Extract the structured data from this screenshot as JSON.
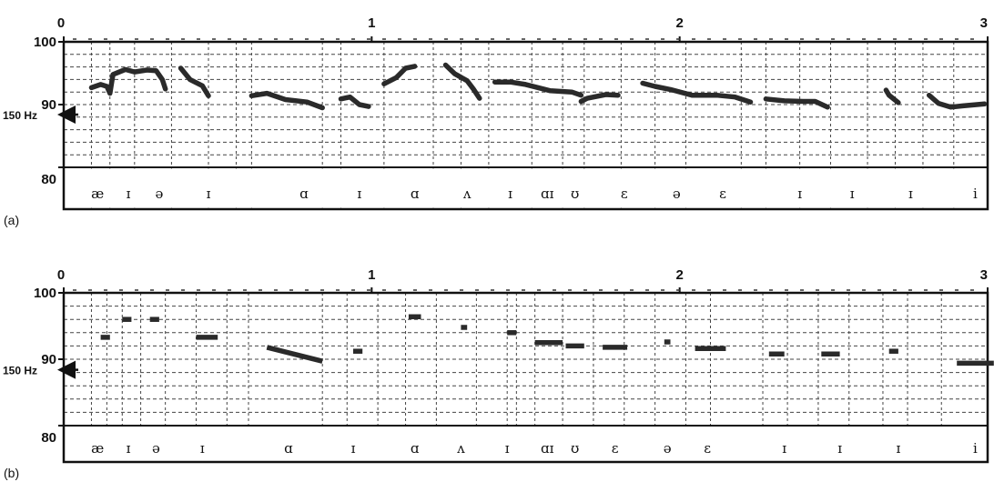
{
  "chart_data": [
    {
      "type": "line",
      "panel_label": "(a)",
      "xlim": [
        0,
        3
      ],
      "x_ticks": [
        "0",
        "1",
        "2",
        "3"
      ],
      "ylim": [
        80,
        100
      ],
      "y_ticks": [
        "100",
        "90",
        "80"
      ],
      "reference_label": "150 Hz",
      "reference_value": 88.4,
      "segment_labels": [
        {
          "x": 0.11,
          "label": "æ"
        },
        {
          "x": 0.21,
          "label": "ɪ"
        },
        {
          "x": 0.31,
          "label": "ə"
        },
        {
          "x": 0.47,
          "label": "ɪ"
        },
        {
          "x": 0.78,
          "label": "ɑ"
        },
        {
          "x": 0.96,
          "label": "ɪ"
        },
        {
          "x": 1.14,
          "label": "ɑ"
        },
        {
          "x": 1.31,
          "label": "ʌ"
        },
        {
          "x": 1.45,
          "label": "ɪ"
        },
        {
          "x": 1.57,
          "label": "ɑɪ"
        },
        {
          "x": 1.66,
          "label": "ʊ"
        },
        {
          "x": 1.82,
          "label": "ɛ"
        },
        {
          "x": 1.99,
          "label": "ə"
        },
        {
          "x": 2.14,
          "label": "ɛ"
        },
        {
          "x": 2.39,
          "label": "ɪ"
        },
        {
          "x": 2.56,
          "label": "ɪ"
        },
        {
          "x": 2.75,
          "label": "ɪ"
        },
        {
          "x": 2.96,
          "label": "i"
        }
      ],
      "series": [
        {
          "segments": [
            [
              [
                0.09,
                92.7
              ],
              [
                0.12,
                93.2
              ],
              [
                0.14,
                92.9
              ],
              [
                0.15,
                91.8
              ],
              [
                0.16,
                94.8
              ],
              [
                0.2,
                95.6
              ],
              [
                0.23,
                95.2
              ],
              [
                0.27,
                95.5
              ],
              [
                0.3,
                95.4
              ],
              [
                0.32,
                94.0
              ],
              [
                0.33,
                92.5
              ]
            ],
            [
              [
                0.38,
                95.8
              ],
              [
                0.41,
                94.0
              ],
              [
                0.45,
                93.0
              ],
              [
                0.47,
                91.4
              ]
            ],
            [
              [
                0.61,
                91.4
              ],
              [
                0.66,
                91.8
              ],
              [
                0.72,
                90.8
              ],
              [
                0.79,
                90.4
              ],
              [
                0.84,
                89.5
              ]
            ],
            [
              [
                0.9,
                90.9
              ],
              [
                0.93,
                91.2
              ],
              [
                0.96,
                90.0
              ],
              [
                0.99,
                89.7
              ]
            ],
            [
              [
                1.04,
                93.3
              ],
              [
                1.08,
                94.3
              ],
              [
                1.11,
                95.8
              ],
              [
                1.14,
                96.1
              ]
            ],
            [
              [
                1.24,
                96.3
              ],
              [
                1.27,
                94.9
              ],
              [
                1.31,
                93.8
              ],
              [
                1.33,
                92.5
              ],
              [
                1.35,
                91.0
              ]
            ],
            [
              [
                1.4,
                93.6
              ],
              [
                1.45,
                93.6
              ],
              [
                1.5,
                93.2
              ],
              [
                1.58,
                92.2
              ],
              [
                1.65,
                92.0
              ],
              [
                1.68,
                91.5
              ]
            ],
            [
              [
                1.68,
                90.5
              ],
              [
                1.7,
                91.0
              ],
              [
                1.76,
                91.6
              ],
              [
                1.8,
                91.5
              ]
            ],
            [
              [
                1.88,
                93.4
              ],
              [
                1.92,
                92.9
              ],
              [
                1.97,
                92.4
              ],
              [
                2.04,
                91.5
              ],
              [
                2.12,
                91.5
              ],
              [
                2.18,
                91.2
              ],
              [
                2.23,
                90.4
              ]
            ],
            [
              [
                2.28,
                90.9
              ],
              [
                2.34,
                90.6
              ],
              [
                2.4,
                90.5
              ],
              [
                2.44,
                90.5
              ],
              [
                2.48,
                89.6
              ]
            ],
            [
              [
                2.67,
                92.3
              ],
              [
                2.68,
                91.5
              ],
              [
                2.71,
                90.3
              ]
            ],
            [
              [
                2.81,
                91.5
              ],
              [
                2.84,
                90.2
              ],
              [
                2.88,
                89.6
              ],
              [
                2.92,
                89.8
              ],
              [
                2.99,
                90.1
              ]
            ]
          ]
        }
      ]
    },
    {
      "type": "line",
      "panel_label": "(b)",
      "xlim": [
        0,
        3
      ],
      "x_ticks": [
        "0",
        "1",
        "2",
        "3"
      ],
      "ylim": [
        80,
        100
      ],
      "y_ticks": [
        "100",
        "90",
        "80"
      ],
      "reference_label": "150 Hz",
      "reference_value": 88.4,
      "segment_labels": [
        {
          "x": 0.11,
          "label": "æ"
        },
        {
          "x": 0.21,
          "label": "ɪ"
        },
        {
          "x": 0.3,
          "label": "ə"
        },
        {
          "x": 0.45,
          "label": "ɪ"
        },
        {
          "x": 0.73,
          "label": "ɑ"
        },
        {
          "x": 0.94,
          "label": "ɪ"
        },
        {
          "x": 1.14,
          "label": "ɑ"
        },
        {
          "x": 1.29,
          "label": "ʌ"
        },
        {
          "x": 1.44,
          "label": "ɪ"
        },
        {
          "x": 1.57,
          "label": "ɑɪ"
        },
        {
          "x": 1.66,
          "label": "ʊ"
        },
        {
          "x": 1.79,
          "label": "ɛ"
        },
        {
          "x": 1.96,
          "label": "ə"
        },
        {
          "x": 2.09,
          "label": "ɛ"
        },
        {
          "x": 2.34,
          "label": "ɪ"
        },
        {
          "x": 2.52,
          "label": "ɪ"
        },
        {
          "x": 2.71,
          "label": "ɪ"
        },
        {
          "x": 2.96,
          "label": "i"
        }
      ],
      "series": [
        {
          "segments": [
            [
              [
                0.12,
                93.3
              ],
              [
                0.15,
                93.3
              ]
            ],
            [
              [
                0.19,
                96.0
              ],
              [
                0.22,
                96.0
              ]
            ],
            [
              [
                0.28,
                96.0
              ],
              [
                0.31,
                96.0
              ]
            ],
            [
              [
                0.43,
                93.3
              ],
              [
                0.5,
                93.3
              ]
            ],
            [
              [
                0.66,
                91.8
              ],
              [
                0.84,
                89.7
              ]
            ],
            [
              [
                0.94,
                91.2
              ],
              [
                0.97,
                91.2
              ]
            ],
            [
              [
                1.12,
                96.4
              ],
              [
                1.16,
                96.4
              ]
            ],
            [
              [
                1.29,
                94.8
              ],
              [
                1.31,
                94.8
              ]
            ],
            [
              [
                1.44,
                94.0
              ],
              [
                1.47,
                94.0
              ]
            ],
            [
              [
                1.53,
                92.5
              ],
              [
                1.62,
                92.5
              ]
            ],
            [
              [
                1.63,
                92.0
              ],
              [
                1.69,
                92.0
              ]
            ],
            [
              [
                1.75,
                91.8
              ],
              [
                1.83,
                91.8
              ]
            ],
            [
              [
                1.95,
                92.6
              ],
              [
                1.97,
                92.6
              ]
            ],
            [
              [
                2.05,
                91.6
              ],
              [
                2.15,
                91.6
              ]
            ],
            [
              [
                2.29,
                90.8
              ],
              [
                2.34,
                90.8
              ]
            ],
            [
              [
                2.46,
                90.8
              ],
              [
                2.52,
                90.8
              ]
            ],
            [
              [
                2.68,
                91.2
              ],
              [
                2.71,
                91.2
              ]
            ],
            [
              [
                2.9,
                89.4
              ],
              [
                3.02,
                89.4
              ]
            ]
          ]
        }
      ]
    }
  ]
}
